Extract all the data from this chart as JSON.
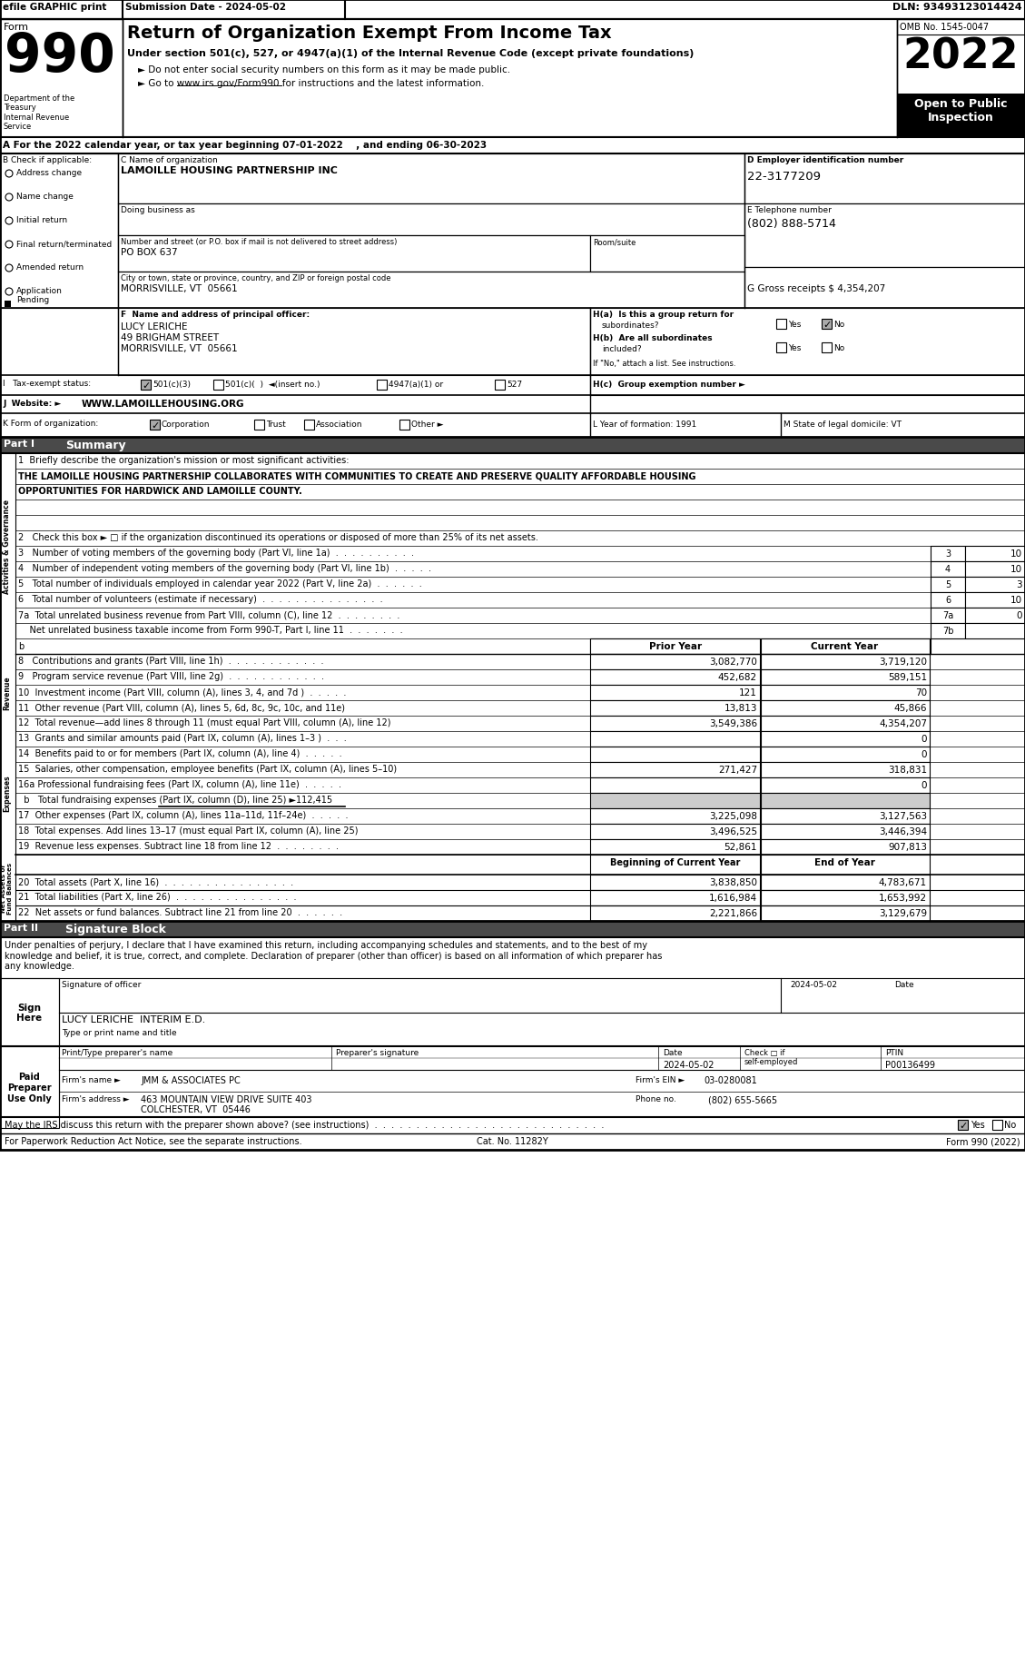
{
  "efile_text": "efile GRAPHIC print",
  "submission_date": "Submission Date - 2024-05-02",
  "dln": "DLN: 93493123014424",
  "form_label": "Form",
  "form_number": "990",
  "title_main": "Return of Organization Exempt From Income Tax",
  "subtitle1": "Under section 501(c), 527, or 4947(a)(1) of the Internal Revenue Code (except private foundations)",
  "subtitle2": "► Do not enter social security numbers on this form as it may be made public.",
  "subtitle3": "► Go to www.irs.gov/Form990 for instructions and the latest information.",
  "omb": "OMB No. 1545-0047",
  "year": "2022",
  "open_to_public": "Open to Public\nInspection",
  "dept_treasury": "Department of the\nTreasury\nInternal Revenue\nService",
  "section_a": "A For the 2022 calendar year, or tax year beginning 07-01-2022    , and ending 06-30-2023",
  "check_if_applicable": "B Check if applicable:",
  "checkboxes_B": [
    "Address change",
    "Name change",
    "Initial return",
    "Final return/terminated",
    "Amended return",
    "Application\nPending"
  ],
  "org_name_label": "C Name of organization",
  "org_name": "LAMOILLE HOUSING PARTNERSHIP INC",
  "doing_business_as": "Doing business as",
  "address_label": "Number and street (or P.O. box if mail is not delivered to street address)",
  "room_suite": "Room/suite",
  "address_value": "PO BOX 637",
  "city_label": "City or town, state or province, country, and ZIP or foreign postal code",
  "city_value": "MORRISVILLE, VT  05661",
  "ein_label": "D Employer identification number",
  "ein_value": "22-3177209",
  "phone_label": "E Telephone number",
  "phone_value": "(802) 888-5714",
  "gross_receipts": "G Gross receipts $ 4,354,207",
  "principal_officer_label": "F  Name and address of principal officer:",
  "principal_officer_name": "LUCY LERICHE",
  "principal_officer_addr1": "49 BRIGHAM STREET",
  "principal_officer_addr2": "MORRISVILLE, VT  05661",
  "ha_label": "H(a)  Is this a group return for",
  "ha_text": "subordinates?",
  "hb_label": "H(b)  Are all subordinates",
  "hb_text": "included?",
  "hb_note": "If \"No,\" attach a list. See instructions.",
  "hc_label": "H(c)  Group exemption number ►",
  "tax_exempt_label": "I   Tax-exempt status:",
  "website_label": "J  Website: ►",
  "website_value": "WWW.LAMOILLEHOUSING.ORG",
  "form_org_label": "K Form of organization:",
  "year_formation_label": "L Year of formation: 1991",
  "state_legal_label": "M State of legal domicile: VT",
  "part1_label": "Part I",
  "part1_title": "Summary",
  "mission_label": "1  Briefly describe the organization's mission or most significant activities:",
  "mission_line1": "THE LAMOILLE HOUSING PARTNERSHIP COLLABORATES WITH COMMUNITIES TO CREATE AND PRESERVE QUALITY AFFORDABLE HOUSING",
  "mission_line2": "OPPORTUNITIES FOR HARDWICK AND LAMOILLE COUNTY.",
  "line2": "2   Check this box ► □ if the organization discontinued its operations or disposed of more than 25% of its net assets.",
  "line3_label": "3   Number of voting members of the governing body (Part VI, line 1a)  .  .  .  .  .  .  .  .  .  .",
  "line3_num": "3",
  "line3_val": "10",
  "line4_label": "4   Number of independent voting members of the governing body (Part VI, line 1b)  .  .  .  .  .",
  "line4_num": "4",
  "line4_val": "10",
  "line5_label": "5   Total number of individuals employed in calendar year 2022 (Part V, line 2a)  .  .  .  .  .  .",
  "line5_num": "5",
  "line5_val": "3",
  "line6_label": "6   Total number of volunteers (estimate if necessary)  .  .  .  .  .  .  .  .  .  .  .  .  .  .  .",
  "line6_num": "6",
  "line6_val": "10",
  "line7a_label": "7a  Total unrelated business revenue from Part VIII, column (C), line 12  .  .  .  .  .  .  .  .",
  "line7a_num": "7a",
  "line7a_val": "0",
  "line7b_label": "    Net unrelated business taxable income from Form 990-T, Part I, line 11  .  .  .  .  .  .  .",
  "line7b_num": "7b",
  "line7b_val": "",
  "prior_year_header": "Prior Year",
  "current_year_header": "Current Year",
  "line8_label": "8   Contributions and grants (Part VIII, line 1h)  .  .  .  .  .  .  .  .  .  .  .  .",
  "line8_prior": "3,082,770",
  "line8_current": "3,719,120",
  "line9_label": "9   Program service revenue (Part VIII, line 2g)  .  .  .  .  .  .  .  .  .  .  .  .",
  "line9_prior": "452,682",
  "line9_current": "589,151",
  "line10_label": "10  Investment income (Part VIII, column (A), lines 3, 4, and 7d )  .  .  .  .  .",
  "line10_prior": "121",
  "line10_current": "70",
  "line11_label": "11  Other revenue (Part VIII, column (A), lines 5, 6d, 8c, 9c, 10c, and 11e)",
  "line11_prior": "13,813",
  "line11_current": "45,866",
  "line12_label": "12  Total revenue—add lines 8 through 11 (must equal Part VIII, column (A), line 12)",
  "line12_prior": "3,549,386",
  "line12_current": "4,354,207",
  "line13_label": "13  Grants and similar amounts paid (Part IX, column (A), lines 1–3 )  .  .  .",
  "line13_prior": "",
  "line13_current": "0",
  "line14_label": "14  Benefits paid to or for members (Part IX, column (A), line 4)  .  .  .  .  .",
  "line14_prior": "",
  "line14_current": "0",
  "line15_label": "15  Salaries, other compensation, employee benefits (Part IX, column (A), lines 5–10)",
  "line15_prior": "271,427",
  "line15_current": "318,831",
  "line16a_label": "16a Professional fundraising fees (Part IX, column (A), line 11e)  .  .  .  .  .",
  "line16a_prior": "",
  "line16a_current": "0",
  "line16b_label": "  b   Total fundraising expenses (Part IX, column (D), line 25) ►112,415",
  "line17_label": "17  Other expenses (Part IX, column (A), lines 11a–11d, 11f–24e)  .  .  .  .  .",
  "line17_prior": "3,225,098",
  "line17_current": "3,127,563",
  "line18_label": "18  Total expenses. Add lines 13–17 (must equal Part IX, column (A), line 25)",
  "line18_prior": "3,496,525",
  "line18_current": "3,446,394",
  "line19_label": "19  Revenue less expenses. Subtract line 18 from line 12  .  .  .  .  .  .  .  .",
  "line19_prior": "52,861",
  "line19_current": "907,813",
  "boc_header": "Beginning of Current Year",
  "eoy_header": "End of Year",
  "line20_label": "20  Total assets (Part X, line 16)  .  .  .  .  .  .  .  .  .  .  .  .  .  .  .  .",
  "line20_boc": "3,838,850",
  "line20_eoy": "4,783,671",
  "line21_label": "21  Total liabilities (Part X, line 26)  .  .  .  .  .  .  .  .  .  .  .  .  .  .  .",
  "line21_boc": "1,616,984",
  "line21_eoy": "1,653,992",
  "line22_label": "22  Net assets or fund balances. Subtract line 21 from line 20  .  .  .  .  .  .",
  "line22_boc": "2,221,866",
  "line22_eoy": "3,129,679",
  "part2_label": "Part II",
  "part2_title": "Signature Block",
  "sig_declaration": "Under penalties of perjury, I declare that I have examined this return, including accompanying schedules and statements, and to the best of my\nknowledge and belief, it is true, correct, and complete. Declaration of preparer (other than officer) is based on all information of which preparer has\nany knowledge.",
  "sign_here_label": "Sign\nHere",
  "sig_officer_label": "Signature of officer",
  "sig_date": "2024-05-02",
  "sig_date_label": "Date",
  "sig_officer_name": "LUCY LERICHE  INTERIM E.D.",
  "sig_officer_title": "Type or print name and title",
  "preparer_name_label": "Print/Type preparer's name",
  "preparer_sig_label": "Preparer's signature",
  "date_col_label": "Date",
  "check_self_label": "Check □ if\nself-employed",
  "ptin_label": "PTIN",
  "preparer_date": "2024-05-02",
  "ptin_val": "P00136499",
  "firm_name_label": "Firm's name ►",
  "firm_name_val": "JMM & ASSOCIATES PC",
  "firm_ein_label": "Firm's EIN ►",
  "firm_ein_val": "03-0280081",
  "firm_addr_label": "Firm's address ►",
  "firm_addr_val": "463 MOUNTAIN VIEW DRIVE SUITE 403",
  "firm_city_val": "COLCHESTER, VT  05446",
  "firm_phone_label": "Phone no.",
  "firm_phone_val": "(802) 655-5665",
  "may_discuss": "May the IRS discuss this return with the preparer shown above? (see instructions)  .  .  .  .  .  .  .  .  .  .  .  .  .  .  .  .  .  .  .  .  .  .  .  .  .  .  .  .",
  "footer_note": "For Paperwork Reduction Act Notice, see the separate instructions.",
  "cat_no": "Cat. No. 11282Y",
  "form_footer": "Form 990 (2022)",
  "paid_preparer_label": "Paid\nPreparer\nUse Only"
}
